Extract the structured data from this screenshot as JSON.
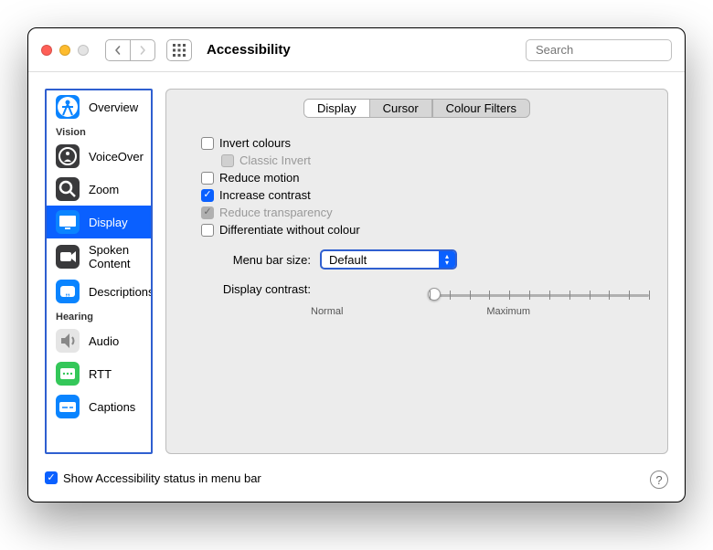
{
  "window": {
    "title": "Accessibility",
    "search_placeholder": "Search"
  },
  "sidebar": {
    "groups": [
      {
        "items": [
          {
            "key": "overview",
            "label": "Overview",
            "icon_bg": "#0a84ff"
          }
        ]
      },
      {
        "header": "Vision",
        "items": [
          {
            "key": "voiceover",
            "label": "VoiceOver",
            "icon_bg": "#3a3a3c"
          },
          {
            "key": "zoom",
            "label": "Zoom",
            "icon_bg": "#3a3a3c"
          },
          {
            "key": "display",
            "label": "Display",
            "icon_bg": "#0a84ff",
            "selected": true
          },
          {
            "key": "spoken",
            "label": "Spoken Content",
            "icon_bg": "#3a3a3c"
          },
          {
            "key": "descriptions",
            "label": "Descriptions",
            "icon_bg": "#0a84ff"
          }
        ]
      },
      {
        "header": "Hearing",
        "items": [
          {
            "key": "audio",
            "label": "Audio",
            "icon_bg": "#e5e5e5"
          },
          {
            "key": "rtt",
            "label": "RTT",
            "icon_bg": "#34c759"
          },
          {
            "key": "captions",
            "label": "Captions",
            "icon_bg": "#0a84ff"
          }
        ]
      }
    ]
  },
  "tabs": {
    "display": "Display",
    "cursor": "Cursor",
    "filters": "Colour Filters"
  },
  "options": {
    "invert": "Invert colours",
    "classic_invert": "Classic Invert",
    "reduce_motion": "Reduce motion",
    "increase_contrast": "Increase contrast",
    "reduce_transparency": "Reduce transparency",
    "differentiate": "Differentiate without colour",
    "menu_bar_label": "Menu bar size:",
    "menu_bar_value": "Default",
    "contrast_label": "Display contrast:",
    "contrast_min": "Normal",
    "contrast_max": "Maximum"
  },
  "footer": {
    "status_label": "Show Accessibility status in menu bar"
  },
  "colors": {
    "accent": "#0a60ff",
    "focus_ring": "#2f5fd0",
    "panel_bg": "#ececec"
  }
}
